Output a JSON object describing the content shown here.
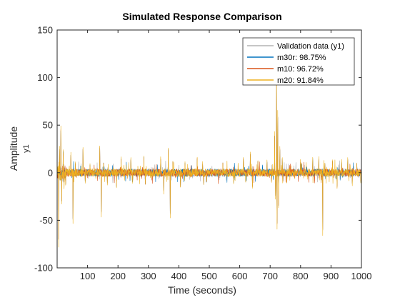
{
  "window": {
    "background": "#ffffff"
  },
  "chart_data": {
    "type": "line",
    "title": "Simulated Response Comparison",
    "xlabel": "Time (seconds)",
    "ylabel": "Amplitude",
    "channel_label": "y1",
    "xlim": [
      0,
      1000
    ],
    "ylim": [
      -100,
      150
    ],
    "xticks": [
      100,
      200,
      300,
      400,
      500,
      600,
      700,
      800,
      900,
      1000
    ],
    "yticks": [
      -100,
      -50,
      0,
      50,
      100,
      150
    ],
    "grid": false,
    "legend_position": "top-right",
    "series": [
      {
        "name": "Validation data (y1)",
        "color": "#b3b3b3"
      },
      {
        "name": "m30r: 98.75%",
        "color": "#0072bd"
      },
      {
        "name": "m10: 96.72%",
        "color": "#d95319"
      },
      {
        "name": "m20: 91.84%",
        "color": "#edb120"
      }
    ],
    "spikes": [
      {
        "x": 5,
        "y": -72
      },
      {
        "x": 8,
        "y": 25
      },
      {
        "x": 12,
        "y": 46
      },
      {
        "x": 15,
        "y": -30
      },
      {
        "x": 20,
        "y": 22
      },
      {
        "x": 28,
        "y": -12
      },
      {
        "x": 45,
        "y": 20
      },
      {
        "x": 52,
        "y": -50
      },
      {
        "x": 60,
        "y": 10
      },
      {
        "x": 85,
        "y": 25
      },
      {
        "x": 92,
        "y": -10
      },
      {
        "x": 108,
        "y": 8
      },
      {
        "x": 140,
        "y": 27
      },
      {
        "x": 145,
        "y": -43
      },
      {
        "x": 152,
        "y": 10
      },
      {
        "x": 165,
        "y": -12
      },
      {
        "x": 195,
        "y": -15
      },
      {
        "x": 210,
        "y": 15
      },
      {
        "x": 242,
        "y": 15
      },
      {
        "x": 248,
        "y": -10
      },
      {
        "x": 285,
        "y": 16
      },
      {
        "x": 290,
        "y": -12
      },
      {
        "x": 340,
        "y": 15
      },
      {
        "x": 350,
        "y": -20
      },
      {
        "x": 365,
        "y": 25
      },
      {
        "x": 372,
        "y": -45
      },
      {
        "x": 380,
        "y": 12
      },
      {
        "x": 405,
        "y": -15
      },
      {
        "x": 420,
        "y": 10
      },
      {
        "x": 460,
        "y": 15
      },
      {
        "x": 478,
        "y": 10
      },
      {
        "x": 482,
        "y": -12
      },
      {
        "x": 545,
        "y": 10
      },
      {
        "x": 580,
        "y": -10
      },
      {
        "x": 612,
        "y": 15
      },
      {
        "x": 620,
        "y": -10
      },
      {
        "x": 635,
        "y": 20
      },
      {
        "x": 642,
        "y": -15
      },
      {
        "x": 660,
        "y": 12
      },
      {
        "x": 690,
        "y": 12
      },
      {
        "x": 705,
        "y": -10
      },
      {
        "x": 715,
        "y": 40
      },
      {
        "x": 718,
        "y": -25
      },
      {
        "x": 721,
        "y": 100
      },
      {
        "x": 723,
        "y": -55
      },
      {
        "x": 725,
        "y": 60
      },
      {
        "x": 728,
        "y": -35
      },
      {
        "x": 732,
        "y": 25
      },
      {
        "x": 740,
        "y": 15
      },
      {
        "x": 755,
        "y": -10
      },
      {
        "x": 800,
        "y": 12
      },
      {
        "x": 840,
        "y": 15
      },
      {
        "x": 860,
        "y": 15
      },
      {
        "x": 868,
        "y": -10
      },
      {
        "x": 873,
        "y": -62
      },
      {
        "x": 880,
        "y": 10
      },
      {
        "x": 905,
        "y": 12
      },
      {
        "x": 920,
        "y": -15
      },
      {
        "x": 935,
        "y": 12
      },
      {
        "x": 955,
        "y": 15
      },
      {
        "x": 970,
        "y": -12
      },
      {
        "x": 985,
        "y": 10
      },
      {
        "x": 998,
        "y": -10
      }
    ]
  }
}
